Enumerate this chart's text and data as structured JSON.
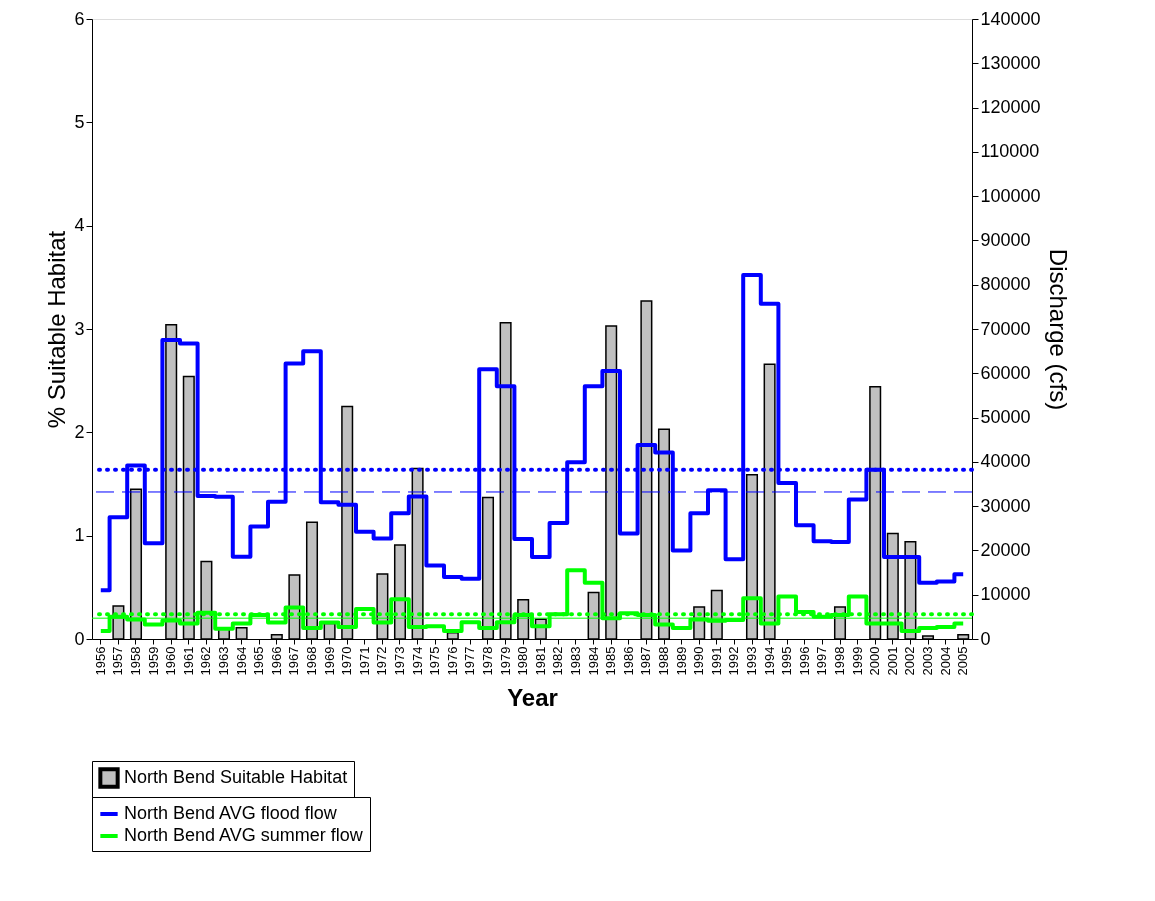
{
  "chart_data": {
    "type": "bar",
    "xlabel": "Year",
    "ylabel": "% Suitable Habitat",
    "y2label": "Discharge (cfs)",
    "categories": [
      "1956",
      "1957",
      "1958",
      "1959",
      "1960",
      "1961",
      "1962",
      "1963",
      "1964",
      "1965",
      "1966",
      "1967",
      "1968",
      "1969",
      "1970",
      "1971",
      "1972",
      "1973",
      "1974",
      "1975",
      "1976",
      "1977",
      "1978",
      "1979",
      "1980",
      "1981",
      "1982",
      "1983",
      "1984",
      "1985",
      "1986",
      "1987",
      "1988",
      "1989",
      "1990",
      "1991",
      "1992",
      "1993",
      "1994",
      "1995",
      "1996",
      "1997",
      "1998",
      "1999",
      "2000",
      "2001",
      "2002",
      "2003",
      "2004",
      "2005"
    ],
    "series": [
      {
        "name": "North Bend Suitable Habitat",
        "type": "bar",
        "color": "#c0c0c0",
        "values": [
          0,
          0.32,
          1.45,
          0,
          3.04,
          2.54,
          0.75,
          0.1,
          0.11,
          0,
          0.04,
          0.62,
          1.13,
          0.15,
          2.25,
          0,
          0.63,
          0.91,
          1.65,
          0,
          0.06,
          0,
          1.37,
          3.06,
          0.38,
          0.19,
          0,
          0,
          0.45,
          3.03,
          0,
          3.27,
          2.03,
          0,
          0.31,
          0.47,
          0,
          1.59,
          2.66,
          0,
          0,
          0,
          0.31,
          0,
          2.44,
          1.02,
          0.94,
          0.03,
          0,
          0.04
        ]
      },
      {
        "name": "North Bend AVG flood flow",
        "type": "step",
        "axis": "y2",
        "color": "#0000ff",
        "values": [
          11000,
          27500,
          39200,
          21600,
          67500,
          66700,
          32300,
          32100,
          18600,
          25400,
          31000,
          62200,
          65000,
          30900,
          30300,
          24200,
          22700,
          28400,
          32200,
          16600,
          14000,
          13600,
          60900,
          57100,
          22600,
          18500,
          26200,
          39900,
          57100,
          60500,
          23800,
          43800,
          42100,
          20000,
          28400,
          33600,
          18000,
          82200,
          75700,
          35200,
          25700,
          22100,
          21900,
          31500,
          38200,
          18500,
          18500,
          12700,
          13000,
          14600
        ]
      },
      {
        "name": "North Bend AVG summer flow",
        "type": "step",
        "axis": "y2",
        "color": "#00ff00",
        "values": [
          1800,
          5000,
          4400,
          3300,
          4200,
          3500,
          5900,
          2300,
          3500,
          5400,
          3700,
          7100,
          2500,
          3700,
          2700,
          6800,
          3700,
          9000,
          2700,
          2900,
          1800,
          3800,
          2500,
          3800,
          5400,
          2900,
          5600,
          15500,
          12700,
          4700,
          5800,
          5400,
          3300,
          2500,
          4400,
          4100,
          4300,
          9200,
          3500,
          9600,
          6100,
          5000,
          5400,
          9600,
          3500,
          3500,
          1800,
          2500,
          2700,
          3500
        ]
      }
    ],
    "ylim": [
      0,
      6
    ],
    "yticks": [
      0,
      1,
      2,
      3,
      4,
      5,
      6
    ],
    "y2lim": [
      0,
      140000
    ],
    "y2ticks": [
      0,
      10000,
      20000,
      30000,
      40000,
      50000,
      60000,
      70000,
      80000,
      90000,
      100000,
      110000,
      120000,
      130000,
      140000
    ],
    "ref_lines": [
      {
        "axis": "y2",
        "value": 38200,
        "color": "#0000ff",
        "line_style": "dotted"
      },
      {
        "axis": "y2",
        "value": 33200,
        "color": "#0000ff",
        "line_style": "dashed"
      },
      {
        "axis": "y2",
        "value": 5600,
        "color": "#00ff00",
        "line_style": "dotted"
      },
      {
        "axis": "y2",
        "value": 4700,
        "color": "#00ff00",
        "line_style": "solid"
      }
    ],
    "grid": false,
    "legend": "bottom left"
  }
}
